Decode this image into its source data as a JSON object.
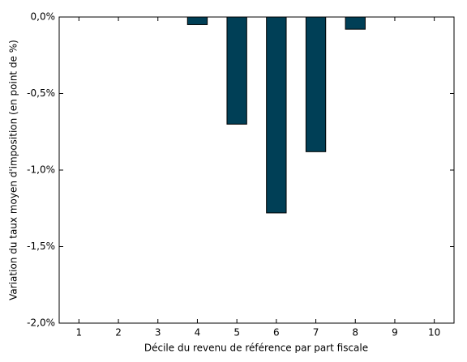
{
  "chart_data": {
    "type": "bar",
    "x_label": "Décile du revenu de référence par part fiscale",
    "y_label": "Variation du taux moyen d'imposition (en point de %)",
    "categories": [
      "1",
      "2",
      "3",
      "4",
      "5",
      "6",
      "7",
      "8",
      "9",
      "10"
    ],
    "values": [
      0,
      0,
      0,
      -0.05,
      -0.7,
      -1.28,
      -0.88,
      -0.08,
      0,
      0
    ],
    "color": "#003f56",
    "ylim": [
      -2.0,
      0.0
    ],
    "yticks": [
      {
        "value": 0.0,
        "label": "0,0%"
      },
      {
        "value": -0.5,
        "label": "-0,5%"
      },
      {
        "value": -1.0,
        "label": "-1,0%"
      },
      {
        "value": -1.5,
        "label": "-1,5%"
      },
      {
        "value": -2.0,
        "label": "-2,0%"
      }
    ],
    "grid": false
  }
}
